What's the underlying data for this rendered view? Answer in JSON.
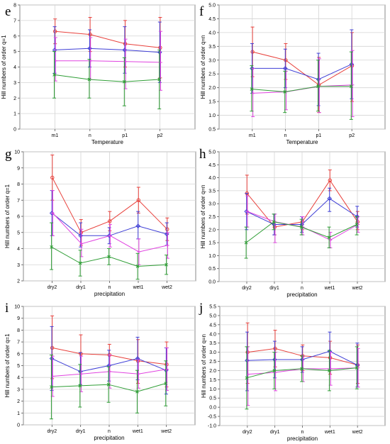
{
  "colors": {
    "red": "#e8413c",
    "blue": "#3f3fd6",
    "green": "#2f9e36",
    "magenta": "#e044e0",
    "grid": "#d4d4d4",
    "frame": "#888888"
  },
  "chart_data": [
    {
      "panel": "e",
      "type": "line",
      "xlabel": "Temperature",
      "ylabel": "Hill numbers of order q=1",
      "categories": [
        "m1",
        "n",
        "p1",
        "p2"
      ],
      "yticks": [
        "0",
        "1",
        "2",
        "3",
        "4",
        "5",
        "6",
        "7",
        "8"
      ],
      "ylim": [
        0,
        8
      ],
      "grid": true,
      "series": [
        {
          "color": "red",
          "marker": "circle",
          "values": [
            6.3,
            6.1,
            5.5,
            5.25
          ],
          "lower": [
            5.5,
            5.0,
            4.0,
            3.3
          ],
          "upper": [
            7.1,
            7.2,
            7.0,
            7.2
          ]
        },
        {
          "color": "blue",
          "marker": "diamond",
          "values": [
            5.1,
            5.2,
            5.1,
            4.95
          ],
          "lower": [
            3.6,
            4.0,
            3.6,
            3.0
          ],
          "upper": [
            6.6,
            6.4,
            6.6,
            6.9
          ]
        },
        {
          "color": "magenta",
          "marker": "plus",
          "values": [
            4.4,
            4.4,
            4.35,
            4.3
          ],
          "lower": [
            3.1,
            3.2,
            2.6,
            2.5
          ],
          "upper": [
            5.9,
            5.9,
            5.8,
            6.3
          ]
        },
        {
          "color": "green",
          "marker": "cross",
          "values": [
            3.5,
            3.2,
            3.05,
            3.2
          ],
          "lower": [
            2.0,
            2.0,
            1.5,
            1.3
          ],
          "upper": [
            5.0,
            4.5,
            4.6,
            5.1
          ]
        }
      ]
    },
    {
      "panel": "f",
      "type": "line",
      "xlabel": "Temperature",
      "ylabel": "Hill numbers of order q=n",
      "categories": [
        "m1",
        "n",
        "p1",
        "p2"
      ],
      "yticks": [
        "0.5",
        "1.0",
        "1.5",
        "2.0",
        "2.5",
        "3.0",
        "3.5",
        "4.0",
        "4.5",
        "5.0"
      ],
      "ylim": [
        0.5,
        5.0
      ],
      "grid": true,
      "series": [
        {
          "color": "red",
          "marker": "circle",
          "values": [
            3.3,
            3.0,
            2.1,
            2.8
          ],
          "lower": [
            2.4,
            2.3,
            1.1,
            1.5
          ],
          "upper": [
            4.2,
            3.6,
            3.1,
            4.0
          ]
        },
        {
          "color": "blue",
          "marker": "diamond",
          "values": [
            2.7,
            2.7,
            2.3,
            2.85
          ],
          "lower": [
            1.8,
            2.0,
            1.35,
            1.6
          ],
          "upper": [
            3.6,
            3.4,
            3.25,
            4.1
          ]
        },
        {
          "color": "magenta",
          "marker": "plus",
          "values": [
            1.8,
            1.85,
            2.05,
            2.1
          ],
          "lower": [
            0.95,
            1.2,
            1.1,
            0.95
          ],
          "upper": [
            2.7,
            2.6,
            3.05,
            3.35
          ]
        },
        {
          "color": "green",
          "marker": "cross",
          "values": [
            1.95,
            1.85,
            2.05,
            2.05
          ],
          "lower": [
            1.15,
            1.1,
            1.15,
            0.85
          ],
          "upper": [
            2.8,
            2.6,
            3.0,
            3.3
          ]
        }
      ]
    },
    {
      "panel": "g",
      "type": "line",
      "xlabel": "precipitation",
      "ylabel": "Hill numbers of order q=1",
      "categories": [
        "dry2",
        "dry1",
        "n",
        "wet1",
        "wet2"
      ],
      "yticks": [
        "2",
        "3",
        "4",
        "5",
        "6",
        "7",
        "8",
        "9",
        "10"
      ],
      "ylim": [
        2,
        10
      ],
      "grid": true,
      "series": [
        {
          "color": "red",
          "marker": "circle",
          "values": [
            8.4,
            5.0,
            5.7,
            7.0,
            5.2
          ],
          "lower": [
            7.0,
            4.2,
            5.1,
            6.2,
            4.5
          ],
          "upper": [
            9.8,
            5.8,
            6.3,
            7.8,
            5.9
          ]
        },
        {
          "color": "blue",
          "marker": "diamond",
          "values": [
            6.2,
            4.8,
            4.8,
            5.4,
            4.9
          ],
          "lower": [
            4.8,
            4.1,
            4.3,
            4.6,
            4.2
          ],
          "upper": [
            7.6,
            5.6,
            5.3,
            6.3,
            5.6
          ]
        },
        {
          "color": "magenta",
          "marker": "plus",
          "values": [
            6.2,
            4.3,
            4.8,
            3.8,
            4.2
          ],
          "lower": [
            4.8,
            3.5,
            4.1,
            3.0,
            3.4
          ],
          "upper": [
            7.6,
            5.2,
            5.5,
            4.6,
            5.0
          ]
        },
        {
          "color": "green",
          "marker": "cross",
          "values": [
            4.1,
            3.1,
            3.5,
            2.9,
            3.0
          ],
          "lower": [
            2.7,
            2.3,
            3.0,
            2.1,
            2.4
          ],
          "upper": [
            5.6,
            3.9,
            4.0,
            3.7,
            3.6
          ]
        }
      ]
    },
    {
      "panel": "h",
      "type": "line",
      "xlabel": "precipitation",
      "ylabel": "Hill numbers of order q=n",
      "categories": [
        "dry2",
        "dry1",
        "n",
        "wet1",
        "wet2"
      ],
      "yticks": [
        "0.0",
        "0.5",
        "1.0",
        "1.5",
        "2.0",
        "2.5",
        "3.0",
        "3.5",
        "4.0",
        "4.5",
        "5.0"
      ],
      "ylim": [
        0,
        5
      ],
      "grid": true,
      "series": [
        {
          "color": "red",
          "marker": "circle",
          "values": [
            3.4,
            2.1,
            2.3,
            3.9,
            2.3
          ],
          "lower": [
            2.6,
            1.8,
            2.0,
            3.5,
            2.0
          ],
          "upper": [
            4.1,
            2.3,
            2.5,
            4.3,
            2.7
          ]
        },
        {
          "color": "blue",
          "marker": "diamond",
          "values": [
            2.7,
            2.2,
            2.2,
            3.2,
            2.5
          ],
          "lower": [
            2.0,
            1.8,
            1.9,
            2.7,
            2.1
          ],
          "upper": [
            3.4,
            2.6,
            2.5,
            3.6,
            2.9
          ]
        },
        {
          "color": "magenta",
          "marker": "plus",
          "values": [
            2.7,
            2.3,
            2.1,
            1.6,
            2.2
          ],
          "lower": [
            2.1,
            1.5,
            1.8,
            1.3,
            1.9
          ],
          "upper": [
            3.3,
            2.6,
            2.5,
            1.9,
            2.5
          ]
        },
        {
          "color": "green",
          "marker": "cross",
          "values": [
            1.5,
            2.3,
            2.1,
            1.7,
            2.2
          ],
          "lower": [
            0.9,
            2.0,
            1.8,
            1.3,
            1.8
          ],
          "upper": [
            2.1,
            2.6,
            2.4,
            2.1,
            2.5
          ]
        }
      ]
    },
    {
      "panel": "i",
      "type": "line",
      "xlabel": "precipitation",
      "ylabel": "Hill numbers of order q=1",
      "categories": [
        "dry2",
        "dry1",
        "n",
        "wet1",
        "wet2"
      ],
      "yticks": [
        "0",
        "1",
        "2",
        "3",
        "4",
        "5",
        "6",
        "7",
        "8",
        "9",
        "10"
      ],
      "ylim": [
        0,
        10
      ],
      "grid": true,
      "series": [
        {
          "color": "red",
          "marker": "circle",
          "values": [
            6.5,
            6.0,
            5.9,
            5.4,
            5.1
          ],
          "lower": [
            3.9,
            4.5,
            4.5,
            3.5,
            3.2
          ],
          "upper": [
            9.2,
            7.6,
            6.8,
            7.2,
            7.0
          ]
        },
        {
          "color": "blue",
          "marker": "diamond",
          "values": [
            5.6,
            4.5,
            5.0,
            5.6,
            4.6
          ],
          "lower": [
            2.9,
            3.4,
            3.7,
            3.8,
            2.6
          ],
          "upper": [
            8.3,
            6.1,
            6.3,
            7.4,
            6.5
          ]
        },
        {
          "color": "magenta",
          "marker": "plus",
          "values": [
            4.1,
            4.3,
            4.5,
            4.3,
            4.7
          ],
          "lower": [
            2.4,
            2.8,
            3.1,
            3.1,
            2.9
          ],
          "upper": [
            5.8,
            5.8,
            5.9,
            5.5,
            6.5
          ]
        },
        {
          "color": "green",
          "marker": "cross",
          "values": [
            3.2,
            3.3,
            3.4,
            2.8,
            3.5
          ],
          "lower": [
            0.5,
            1.5,
            1.9,
            1.0,
            1.6
          ],
          "upper": [
            5.9,
            5.1,
            4.9,
            4.6,
            5.4
          ]
        }
      ]
    },
    {
      "panel": "j",
      "type": "line",
      "xlabel": "precipitation",
      "ylabel": "Hill numbers of order q=n",
      "categories": [
        "dry2",
        "dry1",
        "n",
        "wet1",
        "wet2"
      ],
      "yticks": [
        "-1.0",
        "-0.5",
        "0.0",
        "0.5",
        "1.0",
        "1.5",
        "2.0",
        "2.5",
        "3.0",
        "3.5",
        "4.0",
        "4.5",
        "5.0",
        "5.5"
      ],
      "ylim": [
        -1.0,
        5.5
      ],
      "grid": true,
      "series": [
        {
          "color": "red",
          "marker": "circle",
          "values": [
            3.0,
            3.2,
            2.8,
            2.7,
            2.3
          ],
          "lower": [
            1.3,
            2.2,
            2.0,
            1.8,
            1.3
          ],
          "upper": [
            4.6,
            4.2,
            3.4,
            3.6,
            3.4
          ]
        },
        {
          "color": "blue",
          "marker": "diamond",
          "values": [
            2.55,
            2.6,
            2.6,
            3.05,
            2.3
          ],
          "lower": [
            0.9,
            1.6,
            1.9,
            2.0,
            1.1
          ],
          "upper": [
            4.1,
            3.6,
            3.3,
            4.1,
            3.5
          ]
        },
        {
          "color": "magenta",
          "marker": "plus",
          "values": [
            1.8,
            1.9,
            2.1,
            2.1,
            2.15
          ],
          "lower": [
            0.1,
            0.9,
            1.4,
            1.2,
            1.1
          ],
          "upper": [
            3.3,
            3.0,
            2.8,
            3.0,
            3.2
          ]
        },
        {
          "color": "green",
          "marker": "cross",
          "values": [
            1.6,
            2.0,
            2.1,
            2.0,
            2.15
          ],
          "lower": [
            -0.1,
            1.0,
            1.4,
            0.9,
            1.0
          ],
          "upper": [
            3.3,
            3.0,
            2.8,
            3.1,
            3.3
          ]
        }
      ]
    }
  ]
}
